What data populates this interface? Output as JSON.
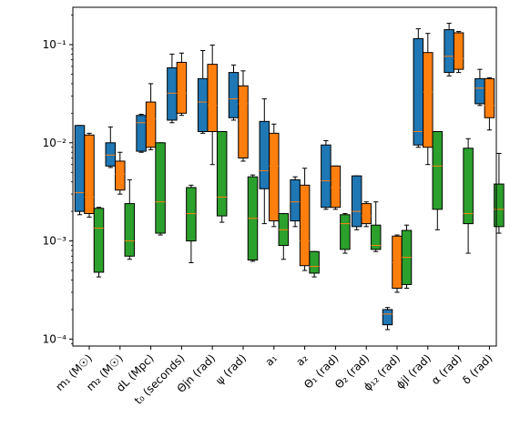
{
  "chart_data": {
    "type": "box",
    "yscale": "log",
    "ylim": [
      8.5e-05,
      0.24
    ],
    "y_ticks": [
      {
        "value": 0.0001,
        "label": "10⁻⁴"
      },
      {
        "value": 0.001,
        "label": "10⁻³"
      },
      {
        "value": 0.01,
        "label": "10⁻²"
      },
      {
        "value": 0.1,
        "label": "10⁻¹"
      }
    ],
    "categories": [
      "m₁ (M☉)",
      "m₂ (M☉)",
      "dL (Mpc)",
      "t₀ (seconds)",
      "Θjn (rad)",
      "ψ (rad)",
      "a₁",
      "a₂",
      "Θ₁ (rad)",
      "Θ₂ (rad)",
      "ϕ₁₂ (rad)",
      "ϕjl (rad)",
      "α (rad)",
      "δ (rad)"
    ],
    "colors": {
      "blue": "#1f77b4",
      "orange": "#ff7f0e",
      "green": "#2ca02c",
      "median": "#ff7f0e"
    },
    "series": [
      {
        "color_key": "blue",
        "boxes": [
          {
            "whislo": 0.00185,
            "q1": 0.002,
            "med": 0.0031,
            "q3": 0.015,
            "whishi": 0.015
          },
          {
            "whislo": 0.0056,
            "q1": 0.0058,
            "med": 0.0075,
            "q3": 0.01,
            "whishi": 0.0145
          },
          {
            "whislo": 0.008,
            "q1": 0.0082,
            "med": 0.016,
            "q3": 0.019,
            "whishi": 0.0195
          },
          {
            "whislo": 0.016,
            "q1": 0.017,
            "med": 0.032,
            "q3": 0.058,
            "whishi": 0.08
          },
          {
            "whislo": 0.0125,
            "q1": 0.013,
            "med": 0.026,
            "q3": 0.045,
            "whishi": 0.087
          },
          {
            "whislo": 0.017,
            "q1": 0.018,
            "med": 0.028,
            "q3": 0.052,
            "whishi": 0.062
          },
          {
            "whislo": 0.0015,
            "q1": 0.0034,
            "med": 0.0052,
            "q3": 0.0165,
            "whishi": 0.028
          },
          {
            "whislo": 0.0014,
            "q1": 0.0016,
            "med": 0.0025,
            "q3": 0.0042,
            "whishi": 0.0045
          },
          {
            "whislo": 0.0021,
            "q1": 0.0022,
            "med": 0.0041,
            "q3": 0.0095,
            "whishi": 0.0105
          },
          {
            "whislo": 0.0013,
            "q1": 0.0014,
            "med": 0.002,
            "q3": 0.0046,
            "whishi": 0.0046
          },
          {
            "whislo": 0.000125,
            "q1": 0.00014,
            "med": 0.00018,
            "q3": 0.0002,
            "whishi": 0.00021
          },
          {
            "whislo": 0.009,
            "q1": 0.0095,
            "med": 0.013,
            "q3": 0.115,
            "whishi": 0.145
          },
          {
            "whislo": 0.048,
            "q1": 0.052,
            "med": 0.076,
            "q3": 0.142,
            "whishi": 0.165
          },
          {
            "whislo": 0.024,
            "q1": 0.025,
            "med": 0.036,
            "q3": 0.045,
            "whishi": 0.056
          }
        ]
      },
      {
        "color_key": "orange",
        "boxes": [
          {
            "whislo": 0.00175,
            "q1": 0.0019,
            "med": 0.0028,
            "q3": 0.012,
            "whishi": 0.0125
          },
          {
            "whislo": 0.003,
            "q1": 0.0033,
            "med": 0.0048,
            "q3": 0.0065,
            "whishi": 0.008
          },
          {
            "whislo": 0.0085,
            "q1": 0.009,
            "med": 0.0175,
            "q3": 0.026,
            "whishi": 0.04
          },
          {
            "whislo": 0.019,
            "q1": 0.02,
            "med": 0.032,
            "q3": 0.066,
            "whishi": 0.082
          },
          {
            "whislo": 0.006,
            "q1": 0.013,
            "med": 0.024,
            "q3": 0.063,
            "whishi": 0.099
          },
          {
            "whislo": 0.0065,
            "q1": 0.007,
            "med": 0.025,
            "q3": 0.038,
            "whishi": 0.054
          },
          {
            "whislo": 0.0014,
            "q1": 0.0016,
            "med": 0.0058,
            "q3": 0.0125,
            "whishi": 0.0155
          },
          {
            "whislo": 0.0005,
            "q1": 0.00056,
            "med": 0.001,
            "q3": 0.0037,
            "whishi": 0.0055
          },
          {
            "whislo": 0.0021,
            "q1": 0.0022,
            "med": 0.0035,
            "q3": 0.0058,
            "whishi": 0.0058
          },
          {
            "whislo": 0.0014,
            "q1": 0.0015,
            "med": 0.0018,
            "q3": 0.0024,
            "whishi": 0.0025
          },
          {
            "whislo": 0.0003,
            "q1": 0.00033,
            "med": 0.0006,
            "q3": 0.00112,
            "whishi": 0.00115
          },
          {
            "whislo": 0.006,
            "q1": 0.009,
            "med": 0.033,
            "q3": 0.083,
            "whishi": 0.13
          },
          {
            "whislo": 0.052,
            "q1": 0.056,
            "med": 0.072,
            "q3": 0.132,
            "whishi": 0.136
          },
          {
            "whislo": 0.0135,
            "q1": 0.018,
            "med": 0.024,
            "q3": 0.045,
            "whishi": 0.046
          }
        ]
      },
      {
        "color_key": "green",
        "boxes": [
          {
            "whislo": 0.00043,
            "q1": 0.00048,
            "med": 0.00135,
            "q3": 0.00215,
            "whishi": 0.0022
          },
          {
            "whislo": 0.00065,
            "q1": 0.0007,
            "med": 0.001,
            "q3": 0.0024,
            "whishi": 0.0042
          },
          {
            "whislo": 0.00115,
            "q1": 0.0012,
            "med": 0.0025,
            "q3": 0.01,
            "whishi": 0.01
          },
          {
            "whislo": 0.0006,
            "q1": 0.001,
            "med": 0.0019,
            "q3": 0.0035,
            "whishi": 0.0037
          },
          {
            "whislo": 0.00155,
            "q1": 0.0018,
            "med": 0.0028,
            "q3": 0.013,
            "whishi": 0.013
          },
          {
            "whislo": 0.00062,
            "q1": 0.00064,
            "med": 0.0017,
            "q3": 0.0045,
            "whishi": 0.0047
          },
          {
            "whislo": 0.00065,
            "q1": 0.0009,
            "med": 0.0013,
            "q3": 0.0019,
            "whishi": 0.0019
          },
          {
            "whislo": 0.00043,
            "q1": 0.00047,
            "med": 0.00055,
            "q3": 0.00078,
            "whishi": 0.00078
          },
          {
            "whislo": 0.00075,
            "q1": 0.00082,
            "med": 0.0015,
            "q3": 0.00185,
            "whishi": 0.0019
          },
          {
            "whislo": 0.00078,
            "q1": 0.00082,
            "med": 0.0009,
            "q3": 0.00145,
            "whishi": 0.0025
          },
          {
            "whislo": 0.00033,
            "q1": 0.00036,
            "med": 0.00068,
            "q3": 0.00128,
            "whishi": 0.00145
          },
          {
            "whislo": 0.0013,
            "q1": 0.0021,
            "med": 0.0058,
            "q3": 0.013,
            "whishi": 0.013
          },
          {
            "whislo": 0.00075,
            "q1": 0.0015,
            "med": 0.0019,
            "q3": 0.0088,
            "whishi": 0.011
          },
          {
            "whislo": 0.0012,
            "q1": 0.0014,
            "med": 0.0021,
            "q3": 0.0038,
            "whishi": 0.0078
          }
        ]
      }
    ]
  }
}
